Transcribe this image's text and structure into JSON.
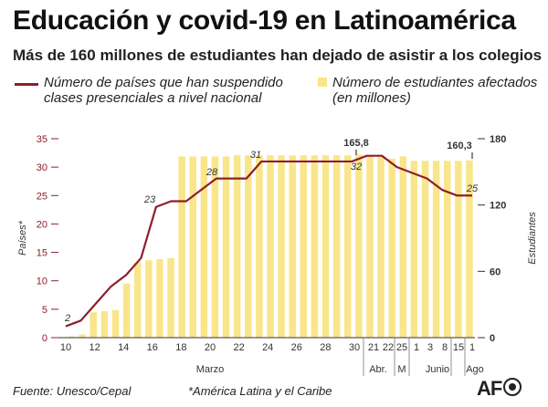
{
  "title": "Educación y covid-19 en Latinoamérica",
  "subtitle": "Más de 160 millones de estudiantes han dejado de asistir a los colegios",
  "legend": {
    "line_label": "Número de países que han suspendido clases presenciales a nivel nacional",
    "bar_label": "Número de estudiantes afectados (en millones)"
  },
  "footer": {
    "source": "Fuente: Unesco/Cepal",
    "note": "*América Latina y el Caribe",
    "logo": "AFP"
  },
  "colors": {
    "line": "#8e1e2b",
    "bar": "#f9e68a",
    "text": "#111111"
  },
  "chart_data": {
    "type": "bar",
    "x_tick_labels": [
      "10",
      "12",
      "14",
      "16",
      "18",
      "20",
      "22",
      "24",
      "26",
      "28",
      "30",
      "21",
      "22",
      "25",
      "1",
      "3",
      "8",
      "15",
      "1"
    ],
    "month_labels": [
      "Marzo",
      "Abr.",
      "M",
      "Junio",
      "Ago"
    ],
    "y_left": {
      "label": "Países*",
      "range": [
        0,
        35
      ],
      "ticks": [
        0,
        5,
        10,
        15,
        20,
        25,
        30,
        35
      ]
    },
    "y_right": {
      "label": "Estudiantes",
      "range": [
        0,
        180
      ],
      "ticks": [
        0,
        60,
        120,
        180
      ]
    },
    "bars": {
      "name": "Número de estudiantes afectados (en millones)",
      "values": [
        1,
        3,
        23,
        24,
        25,
        49,
        68,
        70,
        71,
        72,
        164,
        164,
        164,
        164,
        164,
        165,
        165,
        165,
        165,
        165,
        165,
        165,
        165,
        165,
        165,
        165,
        165.8,
        164,
        164,
        162,
        164,
        160,
        160,
        160,
        160,
        160,
        160.3
      ]
    },
    "line": {
      "name": "Número de países que han suspendido clases presenciales a nivel nacional",
      "values": [
        2,
        3,
        6,
        9,
        11,
        14,
        23,
        24,
        24,
        26,
        28,
        28,
        28,
        31,
        31,
        31,
        31,
        31,
        31,
        31,
        32,
        32,
        30,
        29,
        28,
        26,
        25,
        25
      ]
    },
    "annotations": [
      {
        "text": "2"
      },
      {
        "text": "23"
      },
      {
        "text": "28"
      },
      {
        "text": "31"
      },
      {
        "text": "32"
      },
      {
        "text": "25"
      },
      {
        "text": "165,8"
      },
      {
        "text": "160,3"
      }
    ]
  }
}
